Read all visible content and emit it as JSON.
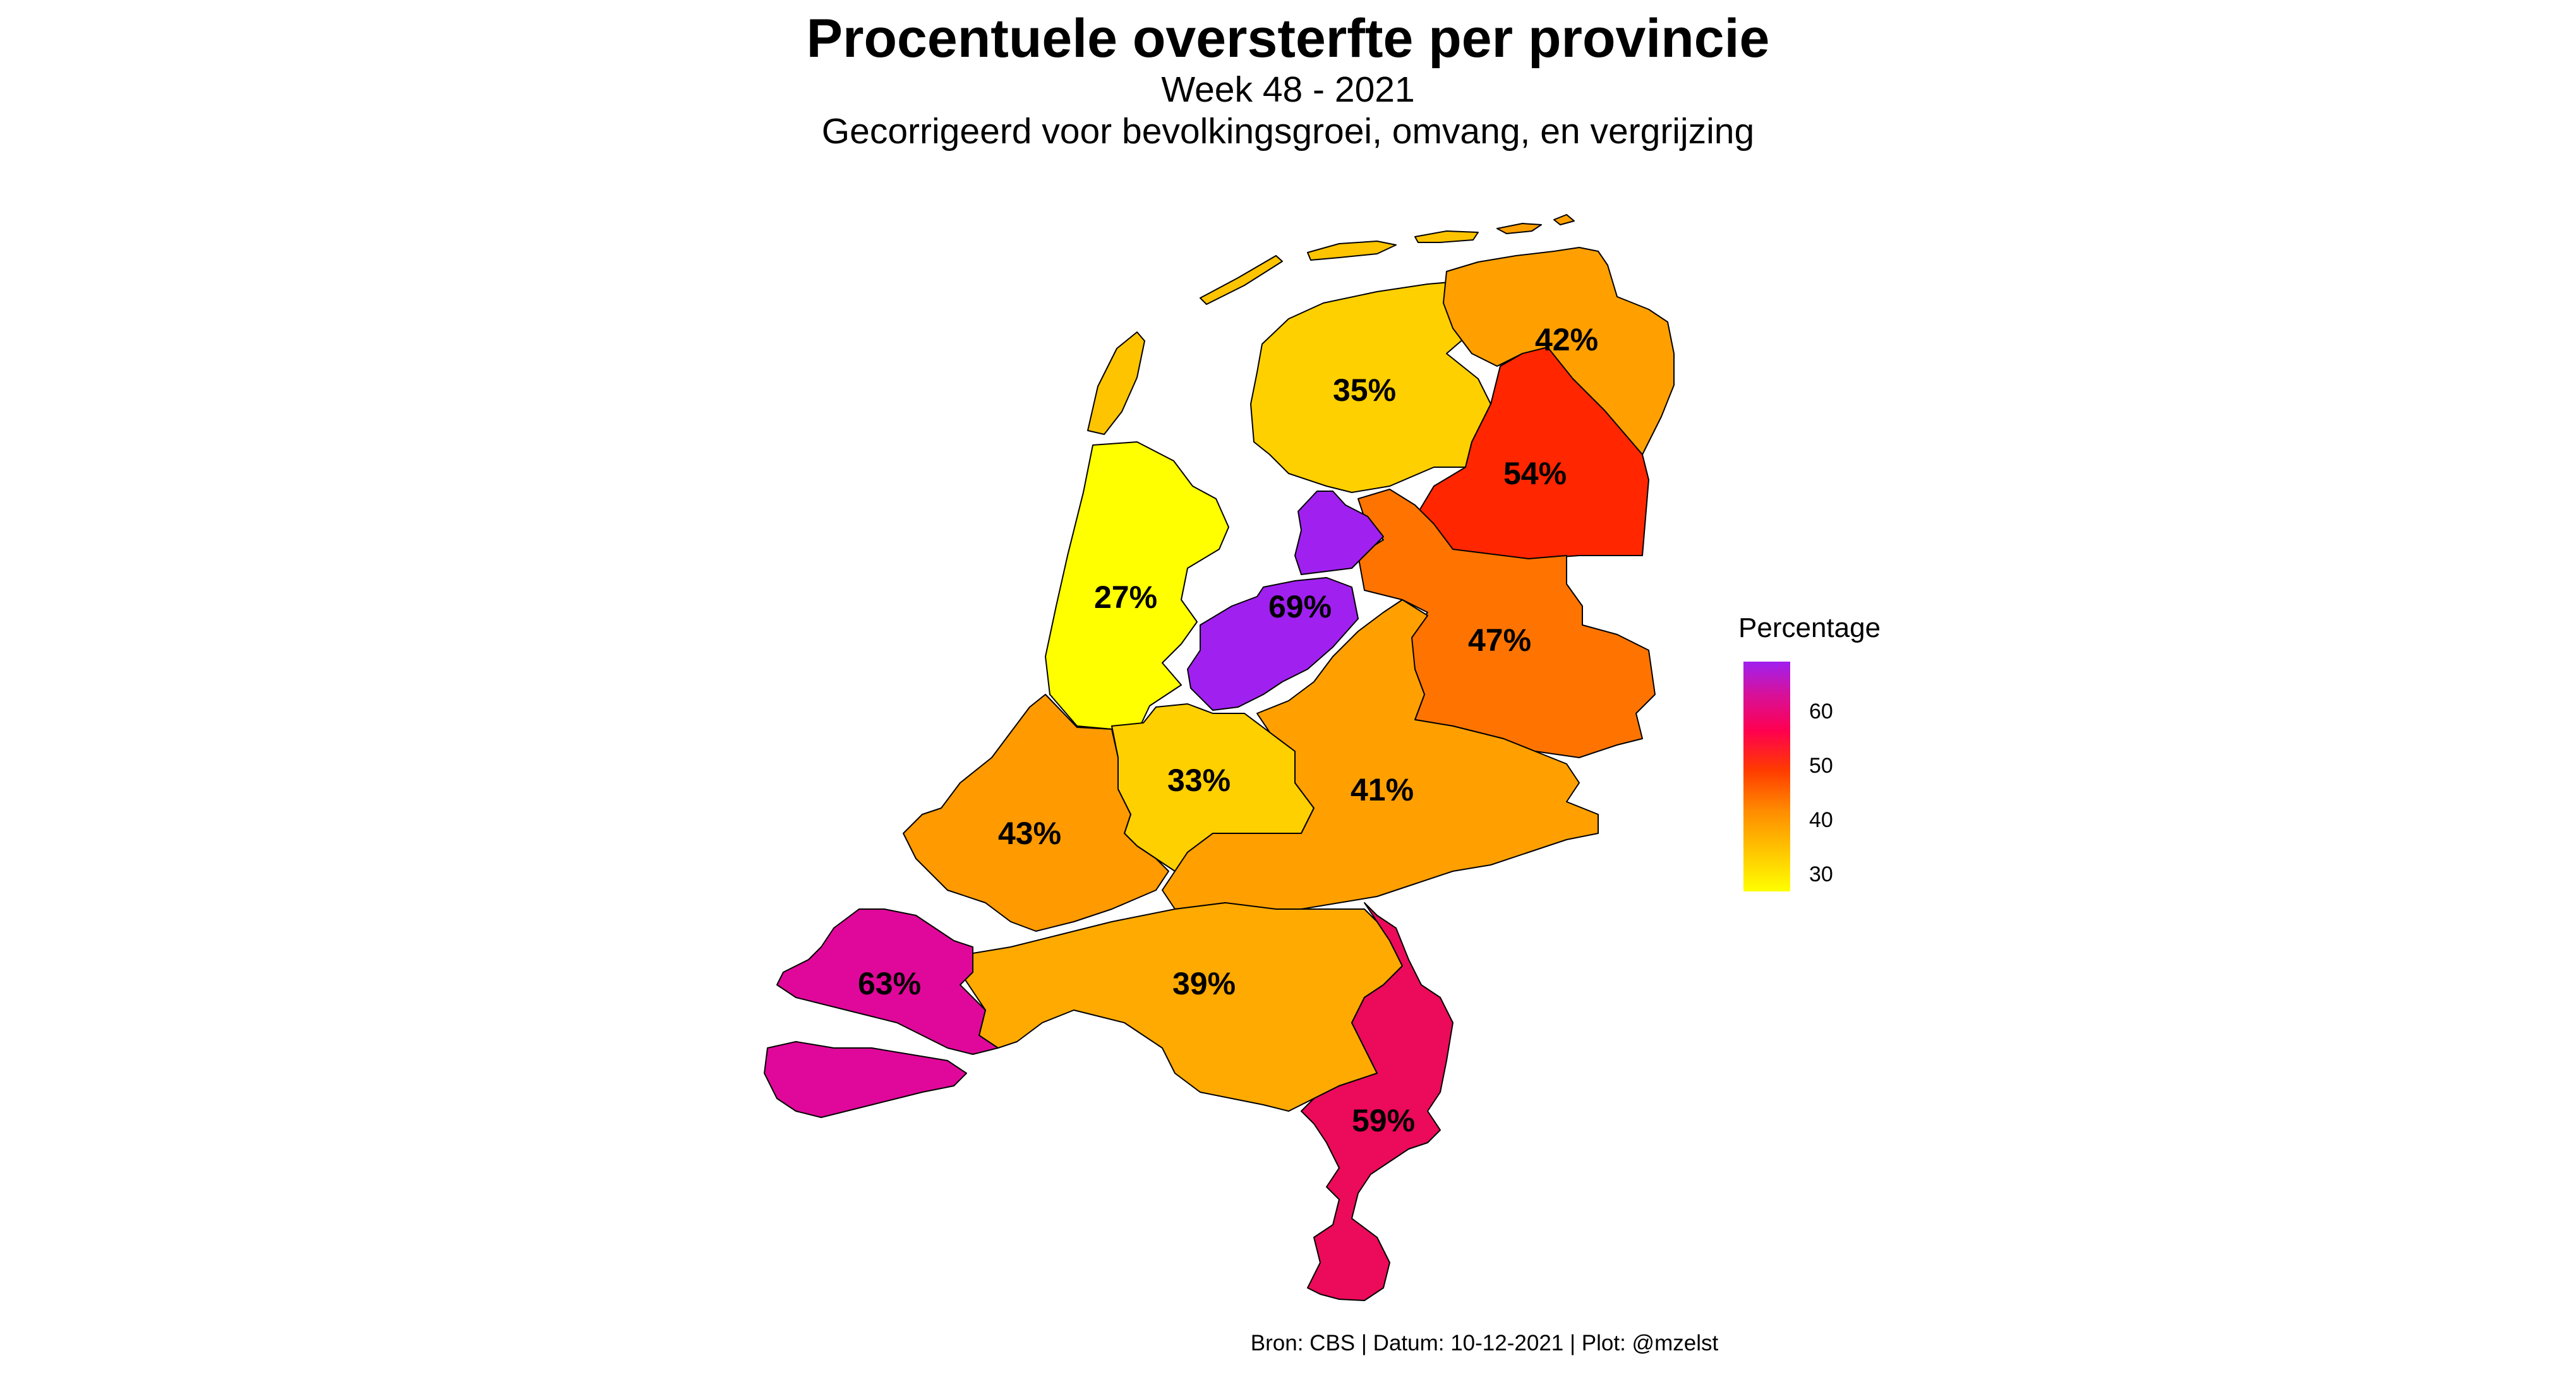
{
  "title": "Procentuele oversterfte per provincie",
  "subtitle_1": "Week 48 - 2021",
  "subtitle_2": "Gecorrigeerd voor bevolkingsgroei, omvang, en vergrijzing",
  "legend": {
    "title": "Percentage",
    "ticks": [
      "60",
      "50",
      "40",
      "30"
    ]
  },
  "caption": "Bron: CBS | Datum: 10-12-2021 | Plot: @mzelst",
  "colors": {
    "purple": "#a020f0",
    "magenta": "#e0089a",
    "crimson": "#ec0a5a",
    "red_orange": "#ff2600",
    "dark_orange": "#ff7400",
    "orange": "#ff9a00",
    "amber": "#ffaa00",
    "gold": "#ffd000",
    "yellow": "#ffff00"
  },
  "provinces": [
    {
      "name": "Flevoland",
      "value": 69,
      "label": "69%"
    },
    {
      "name": "Zeeland",
      "value": 63,
      "label": "63%"
    },
    {
      "name": "Limburg",
      "value": 59,
      "label": "59%"
    },
    {
      "name": "Drenthe",
      "value": 54,
      "label": "54%"
    },
    {
      "name": "Overijssel",
      "value": 47,
      "label": "47%"
    },
    {
      "name": "Zuid-Holland",
      "value": 43,
      "label": "43%"
    },
    {
      "name": "Groningen",
      "value": 42,
      "label": "42%"
    },
    {
      "name": "Gelderland",
      "value": 41,
      "label": "41%"
    },
    {
      "name": "Noord-Brabant",
      "value": 39,
      "label": "39%"
    },
    {
      "name": "Friesland",
      "value": 35,
      "label": "35%"
    },
    {
      "name": "Utrecht",
      "value": 33,
      "label": "33%"
    },
    {
      "name": "Noord-Holland",
      "value": 27,
      "label": "27%"
    }
  ]
}
